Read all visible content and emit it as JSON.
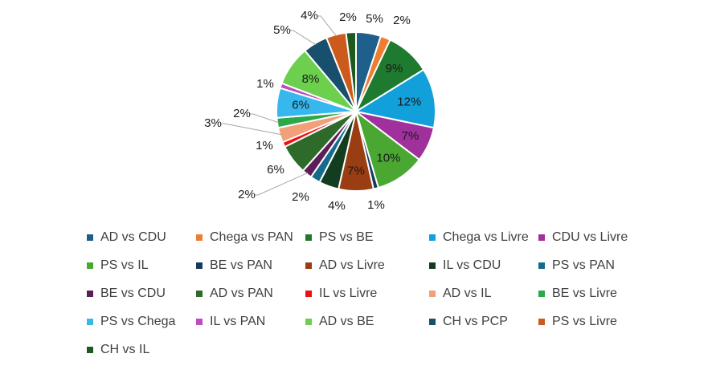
{
  "chart_data": {
    "type": "pie",
    "title": "",
    "slices": [
      {
        "name": "AD vs CDU",
        "value": 5,
        "label": "5%",
        "color": "#1f5f8b"
      },
      {
        "name": "Chega vs PAN",
        "value": 2,
        "label": "2%",
        "color": "#ed7d31"
      },
      {
        "name": "PS vs BE",
        "value": 9,
        "label": "9%",
        "color": "#1e7a2e"
      },
      {
        "name": "Chega vs Livre",
        "value": 12,
        "label": "12%",
        "color": "#12a0da"
      },
      {
        "name": "CDU vs Livre",
        "value": 7,
        "label": "7%",
        "color": "#a0309b"
      },
      {
        "name": "PS vs IL",
        "value": 10,
        "label": "10%",
        "color": "#4aa832"
      },
      {
        "name": "BE vs PAN",
        "value": 1,
        "label": "1%",
        "color": "#173a5e"
      },
      {
        "name": "AD vs Livre",
        "value": 7,
        "label": "7%",
        "color": "#9a3d12"
      },
      {
        "name": "IL vs CDU",
        "value": 4,
        "label": "4%",
        "color": "#123d1e"
      },
      {
        "name": "PS vs PAN",
        "value": 2,
        "label": "2%",
        "color": "#176b8a"
      },
      {
        "name": "BE vs CDU",
        "value": 2,
        "label": "2%",
        "color": "#5c1e58"
      },
      {
        "name": "AD vs PAN",
        "value": 6,
        "label": "6%",
        "color": "#2e6b2a"
      },
      {
        "name": "IL vs Livre",
        "value": 1,
        "label": "1%",
        "color": "#ee1111"
      },
      {
        "name": "AD vs IL",
        "value": 3,
        "label": "3%",
        "color": "#f2a07a"
      },
      {
        "name": "BE vs Livre",
        "value": 2,
        "label": "2%",
        "color": "#2ba84a"
      },
      {
        "name": "PS vs Chega",
        "value": 6,
        "label": "6%",
        "color": "#36b8ee"
      },
      {
        "name": "IL vs PAN",
        "value": 1,
        "label": "1%",
        "color": "#c04ac0"
      },
      {
        "name": "AD vs BE",
        "value": 8,
        "label": "8%",
        "color": "#6ccf4e"
      },
      {
        "name": "CH vs PCP",
        "value": 5,
        "label": "5%",
        "color": "#184e6e"
      },
      {
        "name": "PS vs Livre",
        "value": 4,
        "label": "4%",
        "color": "#cc5a1c"
      },
      {
        "name": "CH vs IL",
        "value": 2,
        "label": "2%",
        "color": "#1e5a1e"
      }
    ],
    "legend": {
      "position": "bottom"
    }
  }
}
